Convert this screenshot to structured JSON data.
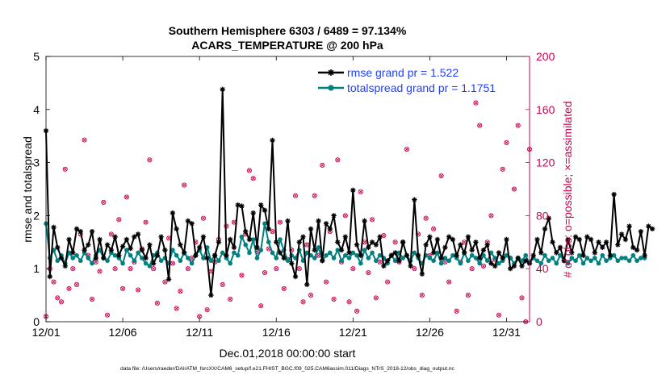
{
  "chart_data": {
    "type": "line",
    "title_line1": "Southern Hemisphere 6303 / 6489 = 97.134%",
    "title_line2": "ACARS_TEMPERATURE @ 200 hPa",
    "xlabel": "Dec.01,2018 00:00:00 start",
    "ylabel_left": "rmse and totalspread",
    "ylabel_right": "# of obs: o=possible; ×=assimilated",
    "x_range_days": [
      0,
      31.5
    ],
    "ylim_left": [
      0,
      5
    ],
    "ylim_right": [
      0,
      200
    ],
    "x_ticks": [
      {
        "day": 0,
        "label": "12/01"
      },
      {
        "day": 5,
        "label": "12/06"
      },
      {
        "day": 10,
        "label": "12/11"
      },
      {
        "day": 15,
        "label": "12/16"
      },
      {
        "day": 20,
        "label": "12/21"
      },
      {
        "day": 25,
        "label": "12/26"
      },
      {
        "day": 30,
        "label": "12/31"
      }
    ],
    "y_ticks_left": [
      "0",
      "1",
      "2",
      "3",
      "4",
      "5"
    ],
    "y_ticks_right": [
      "0",
      "40",
      "80",
      "120",
      "160",
      "200"
    ],
    "step_days": 0.25,
    "series": [
      {
        "name": "rmse grand pr = 1.522",
        "color": "#000000",
        "marker": "asterisk",
        "values": [
          3.6,
          0.85,
          1.78,
          1.4,
          1.2,
          1.05,
          1.55,
          1.3,
          1.75,
          1.7,
          1.35,
          1.45,
          1.7,
          1.2,
          1.55,
          1.2,
          1.45,
          1.35,
          1.6,
          1.25,
          1.42,
          1.55,
          1.38,
          1.6,
          1.65,
          1.35,
          1.2,
          1.45,
          1.1,
          1.25,
          1.6,
          1.35,
          0.8,
          2.05,
          1.75,
          1.45,
          1.3,
          1.9,
          1.85,
          1.25,
          1.4,
          1.6,
          1.2,
          0.5,
          1.25,
          1.5,
          4.38,
          1.25,
          1.55,
          1.4,
          2.2,
          2.18,
          1.7,
          1.55,
          2.05,
          1.4,
          2.2,
          2.1,
          1.75,
          3.42,
          1.5,
          1.3,
          1.2,
          1.9,
          1.1,
          0.85,
          1.5,
          1.6,
          0.7,
          1.75,
          1.35,
          1.9,
          1.15,
          1.85,
          1.75,
          2.0,
          1.5,
          1.35,
          1.6,
          1.3,
          2.48,
          1.45,
          1.25,
          1.9,
          1.4,
          1.5,
          1.45,
          1.6,
          1.05,
          1.15,
          1.25,
          1.3,
          1.15,
          1.5,
          1.25,
          1.05,
          2.3,
          1.25,
          0.9,
          1.45,
          1.6,
          1.3,
          1.55,
          1.2,
          1.4,
          1.6,
          1.55,
          1.25,
          1.45,
          1.3,
          1.6,
          1.35,
          1.5,
          1.2,
          1.35,
          1.45,
          1.1,
          1.05,
          1.3,
          1.2,
          1.55,
          1.0,
          1.05,
          1.2,
          1.05,
          1.15,
          1.1,
          1.25,
          1.55,
          1.3,
          1.75,
          1.95,
          1.5,
          1.3,
          1.4,
          1.15,
          1.55,
          1.3,
          1.6,
          1.55,
          1.25,
          1.6,
          1.55,
          1.3,
          1.5,
          1.4,
          1.5,
          1.25,
          2.4,
          1.45,
          1.65,
          1.55,
          1.8,
          1.4,
          1.35,
          1.7,
          1.25,
          1.8,
          1.75
        ]
      },
      {
        "name": "totalspread grand pr = 1.1751",
        "color": "#008080",
        "marker": "dot",
        "values": [
          1.85,
          1.2,
          1.35,
          1.15,
          1.25,
          1.1,
          1.3,
          1.2,
          1.25,
          1.15,
          1.3,
          1.2,
          1.1,
          1.25,
          1.35,
          1.2,
          1.15,
          1.3,
          1.25,
          1.2,
          1.1,
          1.35,
          1.25,
          1.15,
          1.3,
          1.2,
          1.1,
          1.05,
          1.25,
          1.3,
          1.15,
          1.2,
          1.1,
          1.35,
          1.25,
          1.15,
          1.3,
          1.2,
          1.1,
          1.25,
          1.35,
          1.2,
          1.4,
          1.15,
          1.25,
          1.15,
          1.3,
          1.2,
          1.1,
          1.3,
          1.25,
          1.6,
          1.45,
          1.3,
          1.55,
          1.2,
          1.35,
          1.85,
          1.5,
          1.3,
          1.2,
          1.55,
          1.35,
          1.15,
          1.25,
          1.2,
          1.35,
          1.15,
          1.3,
          1.25,
          1.2,
          1.4,
          1.15,
          1.25,
          1.3,
          1.2,
          1.35,
          1.15,
          1.25,
          1.2,
          1.3,
          1.25,
          1.1,
          1.35,
          1.2,
          1.3,
          1.15,
          1.25,
          1.2,
          1.1,
          1.25,
          1.15,
          1.3,
          1.2,
          1.25,
          1.15,
          1.3,
          1.2,
          1.1,
          1.25,
          1.2,
          1.15,
          1.3,
          1.1,
          1.2,
          1.15,
          1.25,
          1.2,
          1.1,
          1.3,
          1.15,
          1.25,
          1.2,
          1.1,
          1.25,
          1.15,
          1.3,
          1.2,
          1.1,
          1.15,
          1.25,
          1.2,
          1.1,
          1.2,
          1.15,
          1.25,
          1.1,
          1.2,
          1.15,
          1.1,
          1.25,
          1.15,
          1.2,
          1.1,
          1.25,
          1.15,
          1.1,
          1.2,
          1.15,
          1.25,
          1.1,
          1.2,
          1.15,
          1.2,
          1.1,
          1.25,
          1.15,
          1.2,
          1.25,
          1.15,
          1.2,
          1.2,
          1.15,
          1.25,
          1.15,
          1.2,
          1.2
        ]
      }
    ],
    "obs": {
      "color": "#d00050",
      "points": [
        [
          0,
          4
        ],
        [
          0.25,
          40
        ],
        [
          0.5,
          30
        ],
        [
          0.75,
          18
        ],
        [
          1,
          15
        ],
        [
          1.25,
          115
        ],
        [
          1.5,
          25
        ],
        [
          1.75,
          40
        ],
        [
          2,
          28
        ],
        [
          2.25,
          66
        ],
        [
          2.5,
          137
        ],
        [
          2.75,
          50
        ],
        [
          3,
          17
        ],
        [
          3.25,
          45
        ],
        [
          3.5,
          38
        ],
        [
          3.75,
          90
        ],
        [
          4,
          5
        ],
        [
          4.25,
          66
        ],
        [
          4.5,
          40
        ],
        [
          4.75,
          77
        ],
        [
          5,
          25
        ],
        [
          5.25,
          94
        ],
        [
          5.5,
          40
        ],
        [
          5.75,
          45
        ],
        [
          6,
          24
        ],
        [
          6.25,
          55
        ],
        [
          6.5,
          75
        ],
        [
          6.75,
          122
        ],
        [
          7,
          40
        ],
        [
          7.25,
          14
        ],
        [
          7.75,
          30
        ],
        [
          8,
          63
        ],
        [
          8.25,
          44
        ],
        [
          8.5,
          10
        ],
        [
          8.75,
          23
        ],
        [
          9,
          103
        ],
        [
          9.25,
          40
        ],
        [
          9.5,
          48
        ],
        [
          9.75,
          60
        ],
        [
          10,
          4
        ],
        [
          10.25,
          78
        ],
        [
          10.5,
          9
        ],
        [
          10.75,
          38
        ],
        [
          11,
          45
        ],
        [
          11.25,
          62
        ],
        [
          11.5,
          28
        ],
        [
          11.75,
          72
        ],
        [
          12,
          17
        ],
        [
          12.25,
          75
        ],
        [
          12.75,
          35
        ],
        [
          13,
          66
        ],
        [
          13.25,
          114
        ],
        [
          13.5,
          108
        ],
        [
          13.75,
          53
        ],
        [
          14,
          12
        ],
        [
          14.25,
          37
        ],
        [
          14.5,
          55
        ],
        [
          14.75,
          68
        ],
        [
          15,
          40
        ],
        [
          15.25,
          75
        ],
        [
          15.5,
          25
        ],
        [
          15.75,
          47
        ],
        [
          16,
          54
        ],
        [
          16.25,
          95
        ],
        [
          16.5,
          40
        ],
        [
          16.75,
          15
        ],
        [
          17,
          58
        ],
        [
          17.25,
          20
        ],
        [
          17.5,
          95
        ],
        [
          17.75,
          50
        ],
        [
          18,
          118
        ],
        [
          18.25,
          30
        ],
        [
          18.5,
          68
        ],
        [
          18.75,
          17
        ],
        [
          19,
          122
        ],
        [
          19.25,
          45
        ],
        [
          19.5,
          80
        ],
        [
          19.75,
          15
        ],
        [
          20,
          40
        ],
        [
          20.25,
          8
        ],
        [
          20.5,
          98
        ],
        [
          20.75,
          60
        ],
        [
          21,
          37
        ],
        [
          21.25,
          77
        ],
        [
          21.5,
          18
        ],
        [
          21.75,
          45
        ],
        [
          22,
          65
        ],
        [
          22.25,
          30
        ],
        [
          22.75,
          60
        ],
        [
          23,
          45
        ],
        [
          23.25,
          60
        ],
        [
          23.5,
          130
        ],
        [
          24,
          40
        ],
        [
          24.25,
          66
        ],
        [
          24.5,
          20
        ],
        [
          24.75,
          78
        ],
        [
          25,
          50
        ],
        [
          25.25,
          70
        ],
        [
          25.75,
          110
        ],
        [
          26,
          45
        ],
        [
          26.25,
          30
        ],
        [
          26.75,
          8
        ],
        [
          27,
          45
        ],
        [
          27.25,
          60
        ],
        [
          27.5,
          20
        ],
        [
          27.75,
          40
        ],
        [
          28,
          165
        ],
        [
          28.25,
          148
        ],
        [
          28.5,
          42
        ],
        [
          28.75,
          60
        ],
        [
          29,
          80
        ],
        [
          29.25,
          47
        ],
        [
          29.5,
          5
        ],
        [
          29.75,
          115
        ],
        [
          30,
          135
        ],
        [
          30.25,
          48
        ],
        [
          30.5,
          100
        ],
        [
          30.75,
          148
        ],
        [
          31,
          18
        ],
        [
          31.25,
          0
        ],
        [
          31.5,
          130
        ]
      ]
    }
  },
  "footer": "data file: /Users/raeder/DAI/ATM_forcXX/CAM6_setup/f.e21.FHIST_BGC.f09_025.CAM6assim.011/Diags_NTrS_2018-12/obs_diag_output.nc"
}
